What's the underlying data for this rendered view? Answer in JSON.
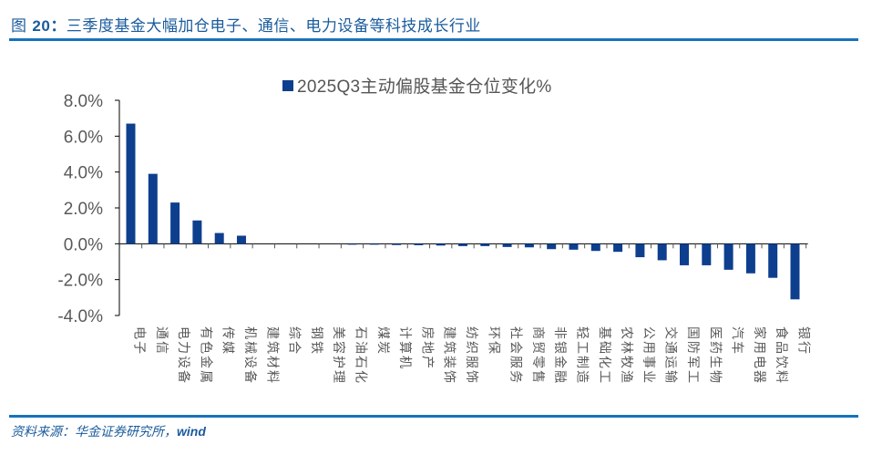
{
  "figure": {
    "title_prefix": "图 ",
    "title_number": "20：",
    "title_text": "三季度基金大幅加仓电子、通信、电力设备等科技成长行业",
    "source_label": "资料来源：华金证券研究所，",
    "source_en": "wind"
  },
  "colors": {
    "bar": "#0e3f8e",
    "rule": "#1773bb",
    "title": "#1a5b9c",
    "axis": "#000000"
  },
  "chart_data": {
    "type": "bar",
    "title": "",
    "legend": [
      "2025Q3主动偏股基金仓位变化%"
    ],
    "legend_position": "top",
    "xlabel": "",
    "ylabel": "",
    "ylim": [
      -4.0,
      8.0
    ],
    "yticks": [
      "8.0%",
      "6.0%",
      "4.0%",
      "2.0%",
      "0.0%",
      "-2.0%",
      "-4.0%"
    ],
    "grid": false,
    "categories": [
      "电子",
      "通信",
      "电力设备",
      "有色金属",
      "传媒",
      "机械设备",
      "建筑材料",
      "综合",
      "钢铁",
      "美容护理",
      "石油石化",
      "煤炭",
      "计算机",
      "房地产",
      "建筑装饰",
      "纺织服饰",
      "环保",
      "社会服务",
      "商贸零售",
      "非银金融",
      "轻工制造",
      "基础化工",
      "农林牧渔",
      "公用事业",
      "交通运输",
      "国防军工",
      "医药生物",
      "汽车",
      "家用电器",
      "食品饮料",
      "银行"
    ],
    "series": [
      {
        "name": "2025Q3主动偏股基金仓位变化%",
        "values": [
          6.7,
          3.9,
          2.3,
          1.3,
          0.6,
          0.45,
          0.0,
          0.0,
          0.0,
          0.0,
          -0.02,
          -0.05,
          -0.07,
          -0.08,
          -0.1,
          -0.13,
          -0.13,
          -0.18,
          -0.2,
          -0.3,
          -0.33,
          -0.4,
          -0.45,
          -0.75,
          -0.92,
          -1.2,
          -1.2,
          -1.45,
          -1.65,
          -1.9,
          -3.1
        ]
      }
    ]
  }
}
